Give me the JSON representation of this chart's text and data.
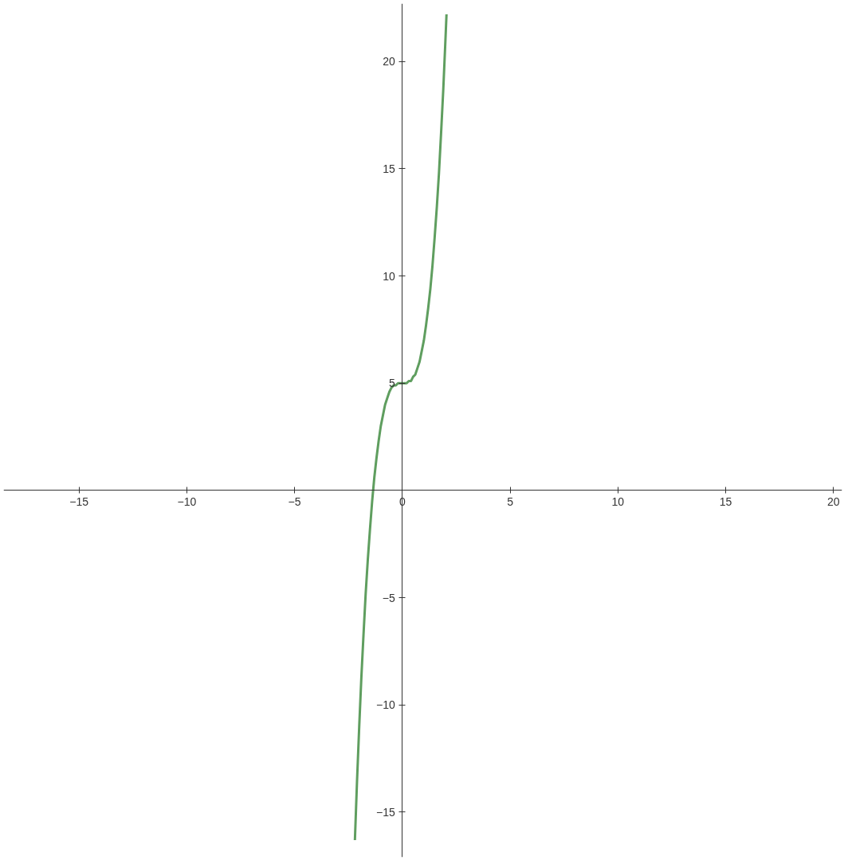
{
  "chart_data": {
    "type": "line",
    "x": [
      -2.2,
      -2.1,
      -2.0,
      -1.9,
      -1.8,
      -1.7,
      -1.6,
      -1.5,
      -1.4,
      -1.3,
      -1.2,
      -1.1,
      -1.0,
      -0.9,
      -0.8,
      -0.7,
      -0.6,
      -0.5,
      -0.4,
      -0.3,
      -0.2,
      -0.1,
      0,
      0.1,
      0.2,
      0.3,
      0.4,
      0.5,
      0.6,
      0.7,
      0.8,
      0.9,
      1.0,
      1.1,
      1.2,
      1.3,
      1.4,
      1.5,
      1.6,
      1.7,
      1.8,
      1.9,
      2.0,
      2.05
    ],
    "series": [
      {
        "color": "#5f9e5f",
        "values": [
          -16.3,
          -13.5,
          -11,
          -8.7,
          -6.7,
          -4.8,
          -3.2,
          -1.8,
          -0.5,
          0.6,
          1.5,
          2.3,
          3,
          3.5,
          4,
          4.3,
          4.6,
          4.8,
          4.9,
          4.9,
          5,
          5,
          5,
          5,
          5,
          5.1,
          5.1,
          5.3,
          5.4,
          5.7,
          6,
          6.5,
          7,
          7.7,
          8.5,
          9.4,
          10.5,
          11.8,
          13.2,
          14.8,
          16.7,
          18.7,
          21,
          22.2
        ]
      }
    ],
    "xlim": [
      -18.5,
      20.4
    ],
    "ylim": [
      -17.1,
      22.7
    ],
    "xticks": [
      {
        "value": -15,
        "label": "−15"
      },
      {
        "value": -10,
        "label": "−10"
      },
      {
        "value": -5,
        "label": "−5"
      },
      0,
      5,
      10,
      15,
      20
    ],
    "yticks": [
      {
        "value": -15,
        "label": "−15"
      },
      {
        "value": -10,
        "label": "−10"
      },
      {
        "value": -5,
        "label": "−5"
      },
      5,
      10,
      15,
      20
    ],
    "grid": false,
    "marker": "none",
    "line_style": "solid"
  }
}
